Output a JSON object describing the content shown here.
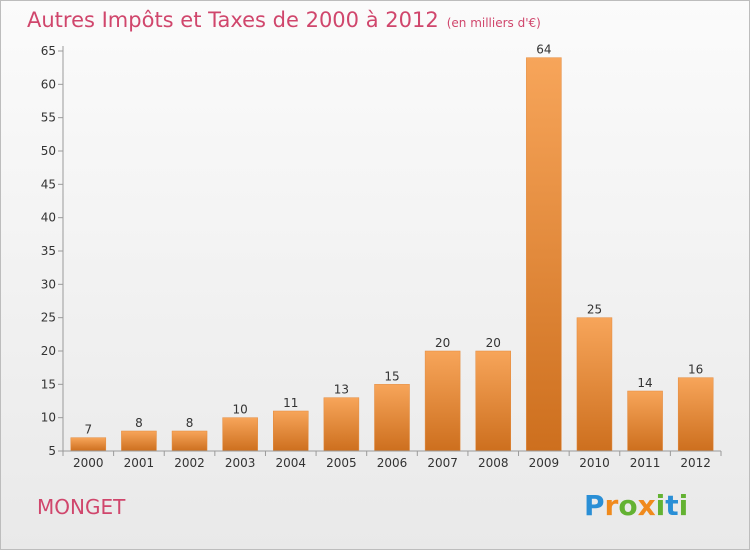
{
  "header": {
    "title": "Autres Impôts et Taxes de 2000 à 2012",
    "subtitle": "(en milliers d'€)"
  },
  "footer": {
    "place": "MONGET",
    "logo_letters": [
      "P",
      "r",
      "o",
      "x",
      "i",
      "t",
      "i"
    ],
    "logo_colors": [
      "#2a8fd6",
      "#f08a1c",
      "#63b232",
      "#f08a1c",
      "#63b232",
      "#2a8fd6",
      "#63b232"
    ]
  },
  "chart_data": {
    "type": "bar",
    "title": "Autres Impôts et Taxes de 2000 à 2012",
    "subtitle": "(en milliers d'€)",
    "categories": [
      "2000",
      "2001",
      "2002",
      "2003",
      "2004",
      "2005",
      "2006",
      "2007",
      "2008",
      "2009",
      "2010",
      "2011",
      "2012"
    ],
    "values": [
      7,
      8,
      8,
      10,
      11,
      13,
      15,
      20,
      20,
      64,
      25,
      14,
      16
    ],
    "ylim": [
      5,
      65
    ],
    "yticks": [
      5,
      10,
      15,
      20,
      25,
      30,
      35,
      40,
      45,
      50,
      55,
      60,
      65
    ],
    "grid": false,
    "colors": {
      "bar_light": "#f7a55a",
      "bar_dark": "#cd6f1e",
      "axis": "#9a9a9a",
      "label": "#333333"
    }
  }
}
